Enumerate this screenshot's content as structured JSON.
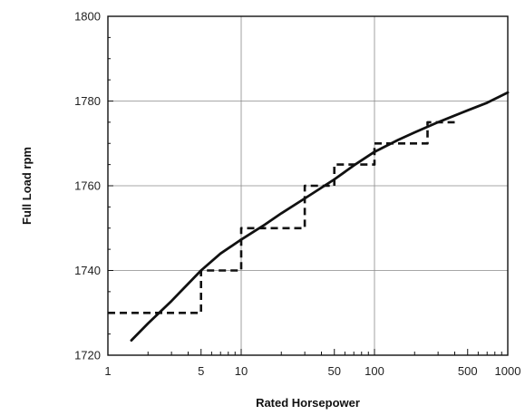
{
  "chart_data": {
    "type": "line",
    "title": "",
    "xlabel": "Rated Horsepower",
    "ylabel": "Full Load rpm",
    "x_scale": "log",
    "xlim": [
      1,
      1000
    ],
    "ylim": [
      1720,
      1800
    ],
    "x_ticks": [
      1,
      5,
      10,
      50,
      100,
      500,
      1000
    ],
    "x_tick_labels": [
      "1",
      "5",
      "10",
      "50",
      "100",
      "500",
      "1000"
    ],
    "x_grid": [
      1,
      10,
      100,
      1000
    ],
    "y_ticks": [
      1720,
      1740,
      1760,
      1780,
      1800
    ],
    "y_tick_labels": [
      "1720",
      "1740",
      "1760",
      "1780",
      "1800"
    ],
    "grid": true,
    "series": [
      {
        "style": "solid",
        "color": "#111111",
        "x": [
          1.5,
          2,
          3,
          5,
          7,
          10,
          15,
          20,
          30,
          50,
          70,
          100,
          150,
          200,
          300,
          500,
          700,
          1000
        ],
        "y": [
          1723.5,
          1727.5,
          1732.8,
          1740.0,
          1744.0,
          1747.3,
          1750.8,
          1753.5,
          1757.0,
          1761.5,
          1764.8,
          1768.0,
          1770.8,
          1772.6,
          1775.0,
          1777.8,
          1779.6,
          1782.0
        ]
      },
      {
        "style": "dashed",
        "color": "#111111",
        "x": [
          1,
          5,
          5,
          10,
          10,
          30,
          30,
          50,
          50,
          100,
          100,
          250,
          250,
          400
        ],
        "y": [
          1730,
          1730,
          1740,
          1740,
          1750,
          1750,
          1760,
          1760,
          1765,
          1765,
          1770,
          1770,
          1775,
          1775
        ]
      }
    ]
  }
}
